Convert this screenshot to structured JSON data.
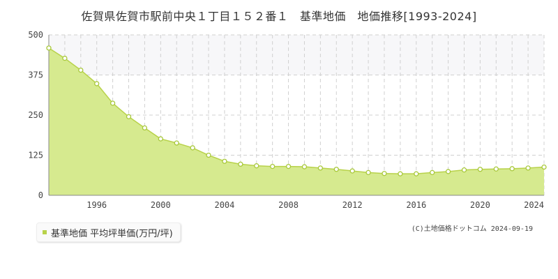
{
  "title": "佐賀県佐賀市駅前中央１丁目１５２番１　基準地価　地価推移[1993-2024]",
  "legend": {
    "label": "基準地価 平均坪単価(万円/坪)"
  },
  "copyright": "(C)土地価格ドットコム 2024-09-19",
  "colors": {
    "fill": "#d6ea8f",
    "line": "#b8d24a",
    "marker": "#a8c83a",
    "grid": "#d0d0d0",
    "band": "#f7f7f9"
  },
  "chart_data": {
    "type": "area",
    "x": [
      1993,
      1994,
      1995,
      1996,
      1997,
      1998,
      1999,
      2000,
      2001,
      2002,
      2003,
      2004,
      2005,
      2006,
      2007,
      2008,
      2009,
      2010,
      2011,
      2012,
      2013,
      2014,
      2015,
      2016,
      2017,
      2018,
      2019,
      2020,
      2021,
      2022,
      2023,
      2024
    ],
    "series": [
      {
        "name": "基準地価 平均坪単価(万円/坪)",
        "values": [
          459,
          427,
          390,
          348,
          287,
          245,
          210,
          176,
          163,
          148,
          125,
          106,
          97,
          92,
          90,
          90,
          89,
          85,
          81,
          76,
          71,
          68,
          67,
          67,
          71,
          74,
          79,
          81,
          82,
          83,
          85,
          88
        ]
      }
    ],
    "xticks": [
      1996,
      2000,
      2004,
      2008,
      2012,
      2016,
      2020,
      2024
    ],
    "yticks": [
      0,
      125,
      250,
      375,
      500
    ],
    "ylim": [
      0,
      500
    ],
    "xlim": [
      1993,
      2024
    ],
    "grid": true,
    "legend_position": "bottom-left"
  }
}
